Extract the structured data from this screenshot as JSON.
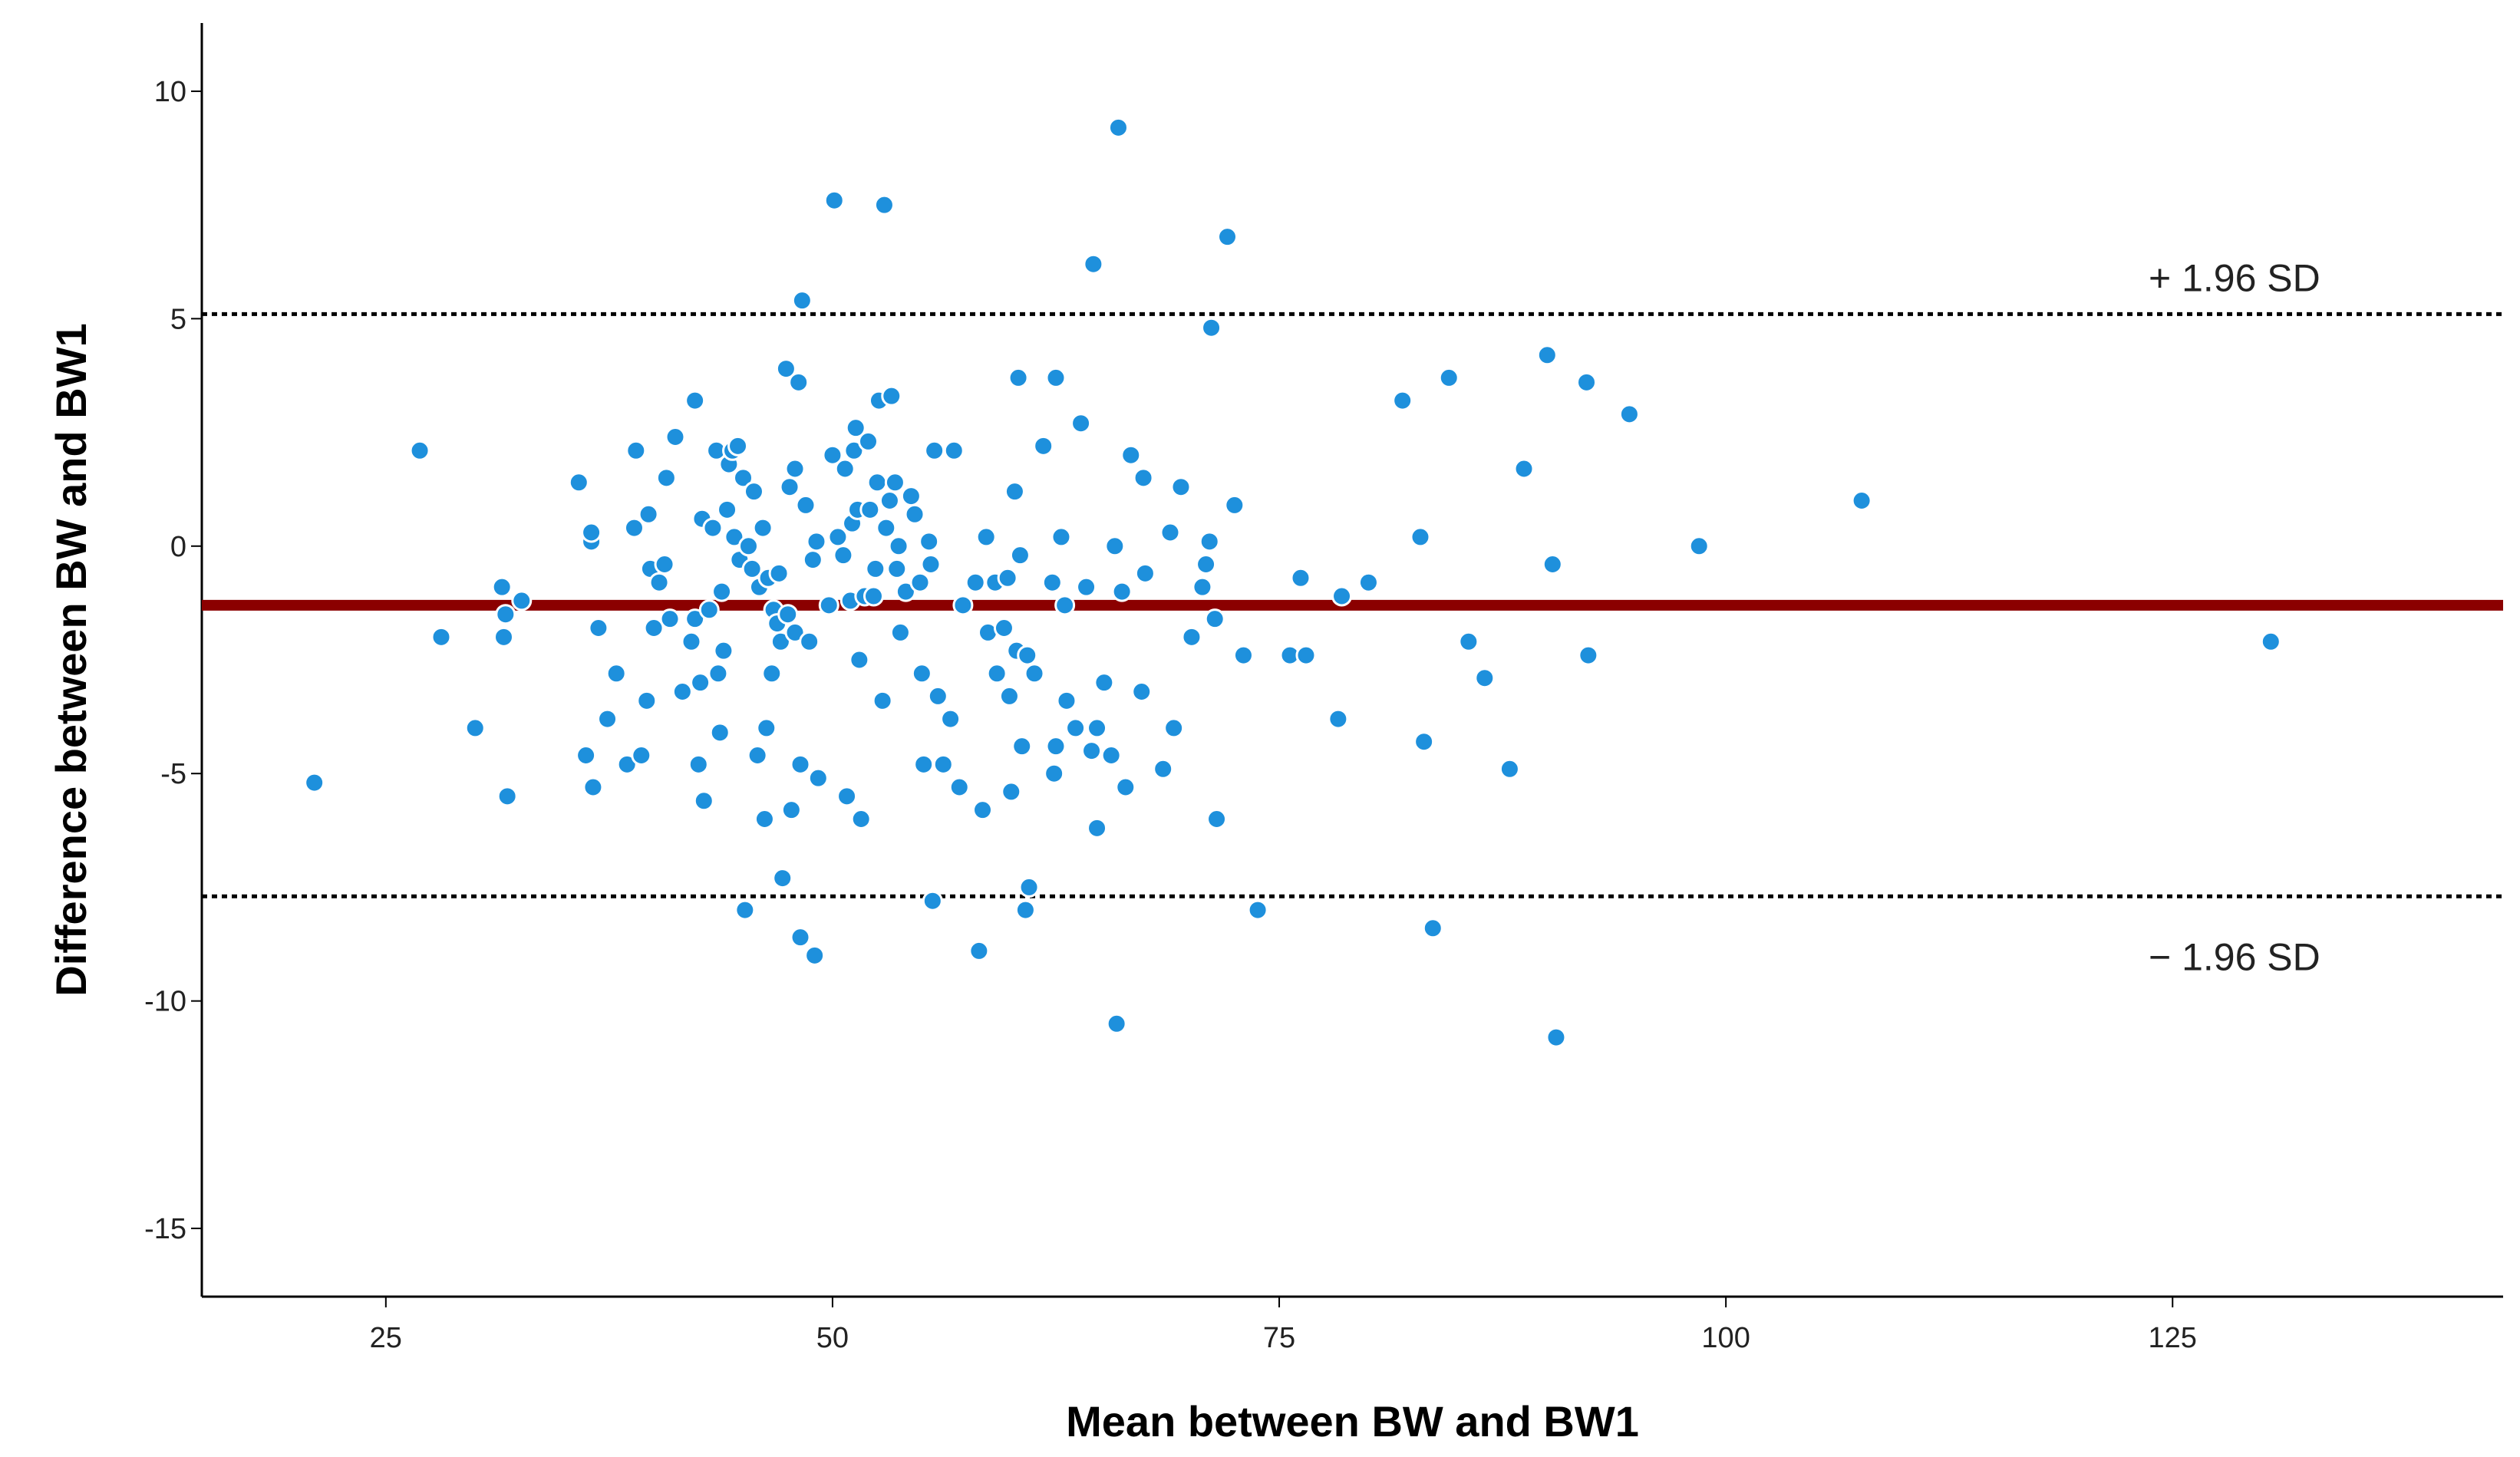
{
  "chart_data": {
    "type": "scatter",
    "title": "",
    "xlabel": "Mean between BW and BW1",
    "ylabel": "Difference between BW and BW1",
    "xlim": [
      14.7,
      143.5
    ],
    "ylim": [
      -16.5,
      11.5
    ],
    "x_ticks": [
      "25",
      "50",
      "75",
      "100",
      "125"
    ],
    "y_ticks": [
      "10",
      "5",
      "0",
      "-5",
      "-10",
      "-15"
    ],
    "grid": false,
    "colors": {
      "points": "#1e90dc",
      "mean_line": "#8b0000",
      "limit_lines": "#000000"
    },
    "reference_lines": [
      {
        "name": "mean",
        "y": -1.3,
        "label": "",
        "style": "solid"
      },
      {
        "name": "upper",
        "y": 5.1,
        "label": "+ 1.96 SD",
        "style": "dotted"
      },
      {
        "name": "lower",
        "y": -7.7,
        "label": "− 1.96 SD",
        "style": "dotted"
      }
    ],
    "points": [
      [
        21.0,
        -5.2
      ],
      [
        26.9,
        2.1
      ],
      [
        28.1,
        -2.0
      ],
      [
        30.0,
        -4.0
      ],
      [
        31.5,
        -0.9
      ],
      [
        31.7,
        -1.5
      ],
      [
        31.6,
        -2.0
      ],
      [
        31.8,
        -5.5
      ],
      [
        32.6,
        -1.2
      ],
      [
        35.8,
        1.4
      ],
      [
        36.2,
        -4.6
      ],
      [
        36.5,
        0.1
      ],
      [
        36.5,
        0.3
      ],
      [
        36.6,
        -5.3
      ],
      [
        36.9,
        -1.8
      ],
      [
        37.4,
        -3.8
      ],
      [
        37.9,
        -2.8
      ],
      [
        38.5,
        -4.8
      ],
      [
        38.9,
        0.4
      ],
      [
        39.0,
        2.1
      ],
      [
        39.3,
        -4.6
      ],
      [
        39.6,
        -3.4
      ],
      [
        39.7,
        0.7
      ],
      [
        39.8,
        -0.5
      ],
      [
        40.0,
        -1.8
      ],
      [
        40.3,
        -0.8
      ],
      [
        40.6,
        -0.4
      ],
      [
        40.7,
        1.5
      ],
      [
        40.9,
        -1.6
      ],
      [
        41.2,
        2.4
      ],
      [
        41.6,
        -3.2
      ],
      [
        42.1,
        -2.1
      ],
      [
        42.3,
        -1.6
      ],
      [
        42.3,
        3.2
      ],
      [
        42.5,
        -4.8
      ],
      [
        42.6,
        -3.0
      ],
      [
        42.7,
        0.6
      ],
      [
        42.8,
        -5.6
      ],
      [
        43.1,
        -1.4
      ],
      [
        43.3,
        0.4
      ],
      [
        43.5,
        2.1
      ],
      [
        43.6,
        -2.8
      ],
      [
        43.7,
        -4.1
      ],
      [
        43.8,
        -1.0
      ],
      [
        43.9,
        -2.3
      ],
      [
        44.1,
        0.8
      ],
      [
        44.2,
        1.8
      ],
      [
        44.4,
        2.1
      ],
      [
        44.5,
        0.2
      ],
      [
        44.7,
        2.2
      ],
      [
        44.8,
        -0.3
      ],
      [
        45.0,
        1.5
      ],
      [
        45.1,
        -8.0
      ],
      [
        45.3,
        0.0
      ],
      [
        45.5,
        -0.5
      ],
      [
        45.6,
        1.2
      ],
      [
        45.8,
        -4.6
      ],
      [
        45.9,
        -0.9
      ],
      [
        46.1,
        0.4
      ],
      [
        46.2,
        -6.0
      ],
      [
        46.3,
        -4.0
      ],
      [
        46.4,
        -0.7
      ],
      [
        46.6,
        -2.8
      ],
      [
        46.7,
        -1.4
      ],
      [
        46.9,
        -1.7
      ],
      [
        47.0,
        -0.6
      ],
      [
        47.1,
        -2.1
      ],
      [
        47.2,
        -7.3
      ],
      [
        47.4,
        3.9
      ],
      [
        47.5,
        -1.5
      ],
      [
        47.6,
        1.3
      ],
      [
        47.7,
        -5.8
      ],
      [
        47.9,
        -1.9
      ],
      [
        47.9,
        1.7
      ],
      [
        48.1,
        3.6
      ],
      [
        48.2,
        -4.8
      ],
      [
        48.2,
        -8.6
      ],
      [
        48.3,
        5.4
      ],
      [
        48.5,
        0.9
      ],
      [
        48.7,
        -2.1
      ],
      [
        48.9,
        -0.3
      ],
      [
        49.0,
        -9.0
      ],
      [
        49.1,
        0.1
      ],
      [
        49.2,
        -5.1
      ],
      [
        49.8,
        -1.3
      ],
      [
        50.0,
        2.0
      ],
      [
        50.1,
        7.6
      ],
      [
        50.3,
        0.2
      ],
      [
        50.6,
        -0.2
      ],
      [
        50.7,
        1.7
      ],
      [
        50.8,
        -5.5
      ],
      [
        51.0,
        -1.2
      ],
      [
        51.1,
        0.5
      ],
      [
        51.2,
        2.1
      ],
      [
        51.3,
        2.6
      ],
      [
        51.4,
        0.8
      ],
      [
        51.5,
        -2.5
      ],
      [
        51.6,
        -6.0
      ],
      [
        51.8,
        -1.1
      ],
      [
        52.0,
        2.3
      ],
      [
        52.1,
        0.8
      ],
      [
        52.3,
        -1.1
      ],
      [
        52.4,
        -0.5
      ],
      [
        52.5,
        1.4
      ],
      [
        52.6,
        3.2
      ],
      [
        52.8,
        -3.4
      ],
      [
        52.9,
        7.5
      ],
      [
        53.0,
        0.4
      ],
      [
        53.2,
        1.0
      ],
      [
        53.3,
        3.3
      ],
      [
        53.5,
        1.4
      ],
      [
        53.6,
        -0.5
      ],
      [
        53.7,
        0.0
      ],
      [
        53.8,
        -1.9
      ],
      [
        54.1,
        -1.0
      ],
      [
        54.4,
        1.1
      ],
      [
        54.6,
        0.7
      ],
      [
        54.9,
        -0.8
      ],
      [
        55.0,
        -2.8
      ],
      [
        55.1,
        -4.8
      ],
      [
        55.4,
        0.1
      ],
      [
        55.5,
        -0.4
      ],
      [
        55.6,
        -7.8
      ],
      [
        55.7,
        2.1
      ],
      [
        55.9,
        -3.3
      ],
      [
        56.2,
        -4.8
      ],
      [
        56.6,
        -3.8
      ],
      [
        56.8,
        2.1
      ],
      [
        57.1,
        -5.3
      ],
      [
        57.3,
        -1.3
      ],
      [
        58.0,
        -0.8
      ],
      [
        58.2,
        -8.9
      ],
      [
        58.4,
        -5.8
      ],
      [
        58.6,
        0.2
      ],
      [
        58.7,
        -1.9
      ],
      [
        59.1,
        -0.8
      ],
      [
        59.2,
        -2.8
      ],
      [
        59.6,
        -1.8
      ],
      [
        59.8,
        -0.7
      ],
      [
        59.9,
        -3.3
      ],
      [
        60.0,
        -5.4
      ],
      [
        60.2,
        1.2
      ],
      [
        60.3,
        -2.3
      ],
      [
        60.4,
        3.7
      ],
      [
        60.5,
        -0.2
      ],
      [
        60.6,
        -4.4
      ],
      [
        60.8,
        -8.0
      ],
      [
        60.9,
        -2.4
      ],
      [
        61.0,
        -7.5
      ],
      [
        61.3,
        -2.8
      ],
      [
        61.8,
        2.2
      ],
      [
        62.3,
        -0.8
      ],
      [
        62.4,
        -5.0
      ],
      [
        62.5,
        -4.4
      ],
      [
        62.5,
        3.7
      ],
      [
        62.8,
        0.2
      ],
      [
        63.0,
        -1.3
      ],
      [
        63.1,
        -3.4
      ],
      [
        63.6,
        -4.0
      ],
      [
        63.9,
        2.7
      ],
      [
        64.2,
        -0.9
      ],
      [
        64.5,
        -4.5
      ],
      [
        64.6,
        6.2
      ],
      [
        64.8,
        -4.0
      ],
      [
        64.8,
        -6.2
      ],
      [
        65.2,
        -3.0
      ],
      [
        65.6,
        -4.6
      ],
      [
        65.8,
        0.0
      ],
      [
        65.9,
        -10.5
      ],
      [
        66.0,
        9.2
      ],
      [
        66.2,
        -1.0
      ],
      [
        66.4,
        -5.3
      ],
      [
        66.7,
        2.0
      ],
      [
        67.3,
        -3.2
      ],
      [
        67.4,
        1.5
      ],
      [
        67.5,
        -0.6
      ],
      [
        68.5,
        -4.9
      ],
      [
        68.9,
        0.3
      ],
      [
        69.1,
        -4.0
      ],
      [
        69.5,
        1.3
      ],
      [
        70.1,
        -2.0
      ],
      [
        70.7,
        -0.9
      ],
      [
        70.9,
        -0.4
      ],
      [
        71.1,
        0.1
      ],
      [
        71.2,
        4.8
      ],
      [
        71.4,
        -1.6
      ],
      [
        71.5,
        -6.0
      ],
      [
        72.1,
        6.8
      ],
      [
        72.5,
        0.9
      ],
      [
        73.0,
        -2.4
      ],
      [
        73.8,
        -8.0
      ],
      [
        75.6,
        -2.4
      ],
      [
        76.2,
        -0.7
      ],
      [
        76.5,
        -2.4
      ],
      [
        78.3,
        -3.8
      ],
      [
        78.5,
        -1.1
      ],
      [
        80.0,
        -0.8
      ],
      [
        81.9,
        3.2
      ],
      [
        82.9,
        0.2
      ],
      [
        83.1,
        -4.3
      ],
      [
        83.6,
        -8.4
      ],
      [
        84.5,
        3.7
      ],
      [
        85.6,
        -2.1
      ],
      [
        86.5,
        -2.9
      ],
      [
        87.9,
        -4.9
      ],
      [
        88.7,
        1.7
      ],
      [
        90.0,
        4.2
      ],
      [
        90.3,
        -0.4
      ],
      [
        90.5,
        -10.8
      ],
      [
        92.2,
        3.6
      ],
      [
        92.3,
        -2.4
      ],
      [
        94.6,
        2.9
      ],
      [
        98.5,
        0.0
      ],
      [
        107.6,
        1.0
      ],
      [
        130.5,
        -2.1
      ]
    ]
  }
}
